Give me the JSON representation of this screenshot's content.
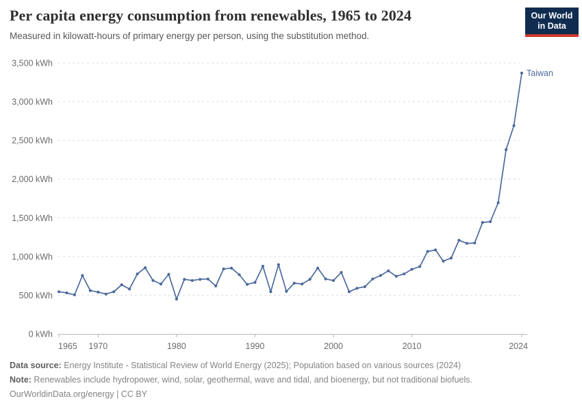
{
  "header": {
    "title": "Per capita energy consumption from renewables, 1965 to 2024",
    "subtitle": "Measured in kilowatt-hours of primary energy per person, using the substitution method.",
    "logo_line1": "Our World",
    "logo_line2": "in Data"
  },
  "chart_data": {
    "type": "line",
    "title": "Per capita energy consumption from renewables, 1965 to 2024",
    "xlabel": "",
    "ylabel": "kWh",
    "xlim": [
      1965,
      2024
    ],
    "ylim": [
      0,
      3500
    ],
    "grid": "horizontal-dashed",
    "legend_position": "end-of-line-label",
    "x_ticks": [
      1965,
      1970,
      1980,
      1990,
      2000,
      2010,
      2024
    ],
    "y_ticks": [
      0,
      500,
      1000,
      1500,
      2000,
      2500,
      3000,
      3500
    ],
    "y_tick_suffix": " kWh",
    "series": [
      {
        "name": "Taiwan",
        "color": "#4c6a9c",
        "x": [
          1965,
          1966,
          1967,
          1968,
          1969,
          1970,
          1971,
          1972,
          1973,
          1974,
          1975,
          1976,
          1977,
          1978,
          1979,
          1980,
          1981,
          1982,
          1983,
          1984,
          1985,
          1986,
          1987,
          1988,
          1989,
          1990,
          1991,
          1992,
          1993,
          1994,
          1995,
          1996,
          1997,
          1998,
          1999,
          2000,
          2001,
          2002,
          2003,
          2004,
          2005,
          2006,
          2007,
          2008,
          2009,
          2010,
          2011,
          2012,
          2013,
          2014,
          2015,
          2016,
          2017,
          2018,
          2019,
          2020,
          2021,
          2022,
          2023,
          2024
        ],
        "values": [
          545,
          530,
          505,
          755,
          560,
          540,
          515,
          545,
          635,
          580,
          775,
          855,
          690,
          645,
          770,
          450,
          705,
          690,
          705,
          710,
          620,
          840,
          850,
          765,
          640,
          665,
          875,
          545,
          895,
          550,
          655,
          645,
          705,
          850,
          710,
          690,
          795,
          545,
          590,
          610,
          710,
          755,
          815,
          745,
          775,
          835,
          870,
          1065,
          1085,
          940,
          980,
          1210,
          1170,
          1175,
          1440,
          1450,
          1695,
          2380,
          2690,
          3370
        ]
      }
    ]
  },
  "footer": {
    "source_label": "Data source:",
    "source_text": " Energy Institute - Statistical Review of World Energy (2025); Population based on various sources (2024)",
    "note_label": "Note:",
    "note_text": " Renewables include hydropower, wind, solar, geothermal, wave and tidal, and bioenergy, but not traditional biofuels.",
    "link_text": "OurWorldinData.org/energy | CC BY"
  },
  "colors": {
    "line": "#4c6a9c",
    "grid": "#dcdcdc",
    "axis": "#b8b8b8",
    "tick_text": "#6b6b6b",
    "logo_bg": "#102d50",
    "logo_red": "#d0382e"
  }
}
